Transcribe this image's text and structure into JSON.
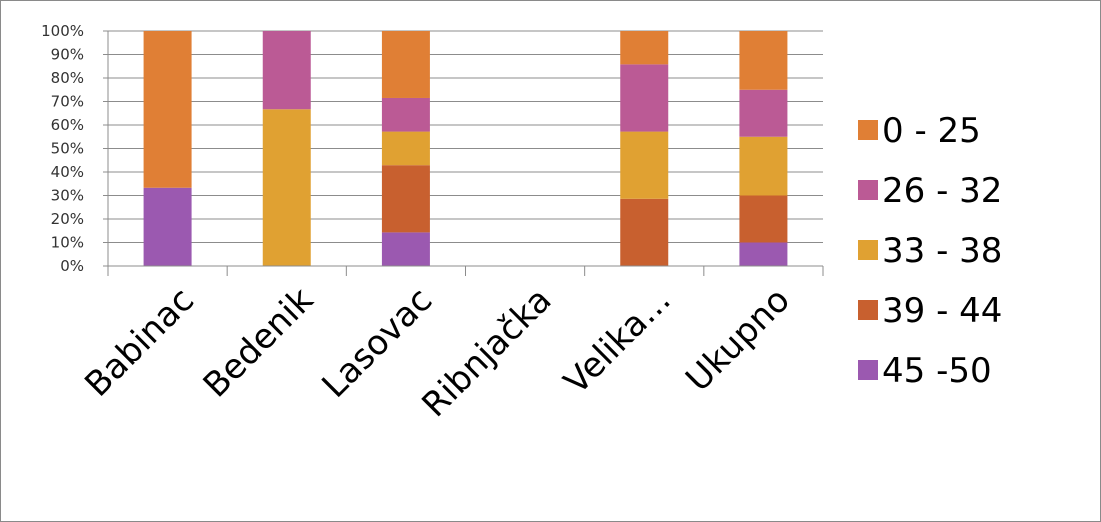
{
  "chart_data": {
    "type": "bar",
    "stacked": true,
    "percent": true,
    "categories": [
      "Babinac",
      "Bedenik",
      "Lasovac",
      "Ribnjačka",
      "Velika...",
      "Ukupno"
    ],
    "ylim": [
      0,
      100
    ],
    "yticks": [
      "0%",
      "10%",
      "20%",
      "30%",
      "40%",
      "50%",
      "60%",
      "70%",
      "80%",
      "90%",
      "100%"
    ],
    "grid": true,
    "legend_position": "right",
    "series": [
      {
        "name": "45 -50",
        "color": "#9b59b0",
        "values": [
          33.3,
          0,
          14.3,
          0,
          0,
          10
        ]
      },
      {
        "name": "39 - 44",
        "color": "#c8602f",
        "values": [
          0,
          0,
          28.6,
          0,
          28.6,
          20
        ]
      },
      {
        "name": "33 - 38",
        "color": "#e0a132",
        "values": [
          0,
          66.7,
          14.3,
          0,
          28.6,
          25
        ]
      },
      {
        "name": "26 - 32",
        "color": "#bb5a95",
        "values": [
          0,
          33.3,
          14.3,
          0,
          28.6,
          20
        ]
      },
      {
        "name": "0 - 25",
        "color": "#e07f35",
        "values": [
          66.7,
          0,
          28.5,
          0,
          14.2,
          25
        ]
      }
    ],
    "legend_order": [
      "0 - 25",
      "26 - 32",
      "33 - 38",
      "39 - 44",
      "45 -50"
    ]
  }
}
